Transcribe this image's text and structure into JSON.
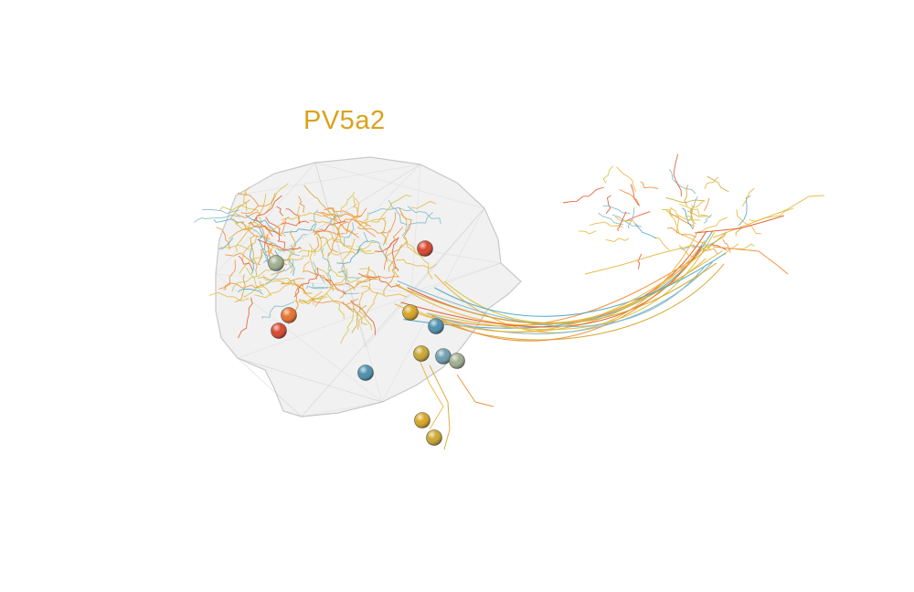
{
  "figure": {
    "title": "PV5a2",
    "title_color": "#D9A21B",
    "background": "#FFFFFF",
    "volume_fill": "#E6E6E6",
    "volume_edge": "#C8C8C8",
    "palette": [
      "#E4532A",
      "#F08C2E",
      "#E9B53A",
      "#D4C23C",
      "#4FA4C4",
      "#8FBFCF"
    ],
    "neuron_colors": [
      "#E4532A",
      "#F08C2E",
      "#E9B53A",
      "#D4C23C",
      "#4FA4C4",
      "#7DB7C8",
      "#E9B53A",
      "#D4A62C"
    ],
    "soma_colors": [
      "#D9442B",
      "#E8702A",
      "#D8A520",
      "#C9A52E",
      "#4B8EAD",
      "#6D9DB0",
      "#9FAE8E"
    ]
  }
}
